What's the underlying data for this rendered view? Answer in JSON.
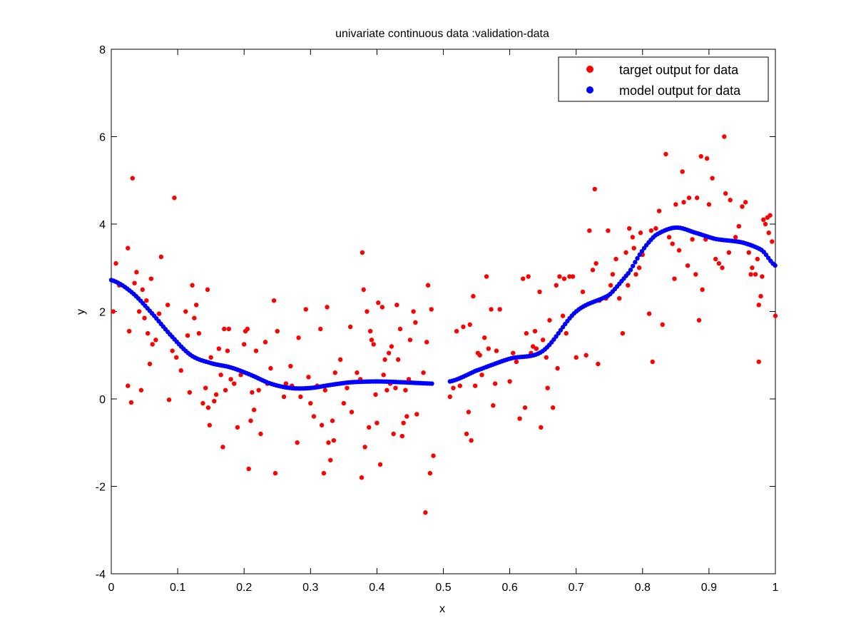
{
  "chart_data": {
    "type": "scatter",
    "title": "univariate continuous data :validation-data",
    "xlabel": "x",
    "ylabel": "y",
    "xlim": [
      0,
      1
    ],
    "ylim": [
      -4,
      8
    ],
    "xticks": [
      0,
      0.1,
      0.2,
      0.3,
      0.4,
      0.5,
      0.6,
      0.7,
      0.8,
      0.9,
      1
    ],
    "xtick_labels": [
      "0",
      "0.1",
      "0.2",
      "0.3",
      "0.4",
      "0.5",
      "0.6",
      "0.7",
      "0.8",
      "0.9",
      "1"
    ],
    "yticks": [
      -4,
      -2,
      0,
      2,
      4,
      6,
      8
    ],
    "ytick_labels": [
      "-4",
      "-2",
      "0",
      "2",
      "4",
      "6",
      "8"
    ],
    "grid": false,
    "legend_position": "top-right",
    "series": [
      {
        "name": "target output for data",
        "color": "#ff0000",
        "points": [
          [
            0.003,
            2.0
          ],
          [
            0.007,
            3.1
          ],
          [
            0.012,
            2.6
          ],
          [
            0.025,
            3.45
          ],
          [
            0.025,
            0.3
          ],
          [
            0.027,
            1.55
          ],
          [
            0.03,
            -0.08
          ],
          [
            0.032,
            5.05
          ],
          [
            0.035,
            2.65
          ],
          [
            0.038,
            2.9
          ],
          [
            0.042,
            2.0
          ],
          [
            0.045,
            0.2
          ],
          [
            0.047,
            2.5
          ],
          [
            0.05,
            1.85
          ],
          [
            0.053,
            2.25
          ],
          [
            0.055,
            1.5
          ],
          [
            0.058,
            0.8
          ],
          [
            0.06,
            2.75
          ],
          [
            0.062,
            1.25
          ],
          [
            0.067,
            1.35
          ],
          [
            0.072,
            1.95
          ],
          [
            0.075,
            3.25
          ],
          [
            0.085,
            2.15
          ],
          [
            0.087,
            -0.02
          ],
          [
            0.092,
            1.1
          ],
          [
            0.095,
            4.6
          ],
          [
            0.098,
            0.95
          ],
          [
            0.105,
            0.65
          ],
          [
            0.112,
            2.0
          ],
          [
            0.115,
            1.45
          ],
          [
            0.118,
            0.15
          ],
          [
            0.122,
            2.6
          ],
          [
            0.125,
            1.85
          ],
          [
            0.128,
            2.15
          ],
          [
            0.132,
            1.5
          ],
          [
            0.138,
            -0.1
          ],
          [
            0.142,
            0.25
          ],
          [
            0.145,
            2.5
          ],
          [
            0.146,
            -0.2
          ],
          [
            0.148,
            -0.6
          ],
          [
            0.15,
            0.95
          ],
          [
            0.155,
            -0.05
          ],
          [
            0.158,
            0.1
          ],
          [
            0.162,
            1.15
          ],
          [
            0.165,
            0.55
          ],
          [
            0.168,
            -1.1
          ],
          [
            0.17,
            1.6
          ],
          [
            0.172,
            0.2
          ],
          [
            0.175,
            1.1
          ],
          [
            0.177,
            1.6
          ],
          [
            0.18,
            0.45
          ],
          [
            0.185,
            0.35
          ],
          [
            0.19,
            -0.65
          ],
          [
            0.195,
            0.55
          ],
          [
            0.2,
            1.25
          ],
          [
            0.202,
            1.55
          ],
          [
            0.205,
            1.6
          ],
          [
            0.207,
            -1.6
          ],
          [
            0.21,
            -0.5
          ],
          [
            0.212,
            0.15
          ],
          [
            0.215,
            -0.25
          ],
          [
            0.218,
            1.1
          ],
          [
            0.222,
            0.2
          ],
          [
            0.225,
            -0.8
          ],
          [
            0.232,
            1.3
          ],
          [
            0.235,
            0.35
          ],
          [
            0.24,
            0.7
          ],
          [
            0.245,
            2.25
          ],
          [
            0.247,
            -1.7
          ],
          [
            0.25,
            1.55
          ],
          [
            0.26,
            0.05
          ],
          [
            0.263,
            0.35
          ],
          [
            0.27,
            0.75
          ],
          [
            0.272,
            0.3
          ],
          [
            0.28,
            -1.0
          ],
          [
            0.282,
            1.4
          ],
          [
            0.285,
            0.05
          ],
          [
            0.293,
            2.05
          ],
          [
            0.297,
            0.5
          ],
          [
            0.3,
            -0.1
          ],
          [
            0.305,
            -0.4
          ],
          [
            0.31,
            0.3
          ],
          [
            0.315,
            1.6
          ],
          [
            0.317,
            -0.6
          ],
          [
            0.32,
            -1.7
          ],
          [
            0.322,
            0.2
          ],
          [
            0.325,
            2.1
          ],
          [
            0.327,
            -1.0
          ],
          [
            0.33,
            -1.4
          ],
          [
            0.333,
            -0.5
          ],
          [
            0.335,
            -0.95
          ],
          [
            0.337,
            0.6
          ],
          [
            0.345,
            0.9
          ],
          [
            0.35,
            -0.1
          ],
          [
            0.355,
            0.25
          ],
          [
            0.36,
            1.65
          ],
          [
            0.362,
            -0.3
          ],
          [
            0.37,
            0.6
          ],
          [
            0.375,
            0.45
          ],
          [
            0.377,
            -1.8
          ],
          [
            0.378,
            3.35
          ],
          [
            0.38,
            2.5
          ],
          [
            0.382,
            -1.1
          ],
          [
            0.385,
            2.0
          ],
          [
            0.388,
            -0.65
          ],
          [
            0.39,
            1.55
          ],
          [
            0.392,
            1.35
          ],
          [
            0.395,
            1.25
          ],
          [
            0.398,
            0.1
          ],
          [
            0.4,
            -0.55
          ],
          [
            0.402,
            2.2
          ],
          [
            0.405,
            -1.5
          ],
          [
            0.408,
            2.1
          ],
          [
            0.41,
            0.55
          ],
          [
            0.412,
            0.9
          ],
          [
            0.415,
            0.2
          ],
          [
            0.418,
            1.05
          ],
          [
            0.42,
            0.35
          ],
          [
            0.422,
            1.2
          ],
          [
            0.425,
            -0.8
          ],
          [
            0.428,
            0.25
          ],
          [
            0.43,
            2.15
          ],
          [
            0.432,
            0.9
          ],
          [
            0.435,
            1.6
          ],
          [
            0.438,
            -0.85
          ],
          [
            0.44,
            -0.55
          ],
          [
            0.443,
            0.2
          ],
          [
            0.445,
            -0.4
          ],
          [
            0.448,
            0.45
          ],
          [
            0.45,
            1.35
          ],
          [
            0.455,
            2.0
          ],
          [
            0.458,
            1.75
          ],
          [
            0.46,
            -0.35
          ],
          [
            0.47,
            0.6
          ],
          [
            0.473,
            -2.6
          ],
          [
            0.475,
            1.3
          ],
          [
            0.477,
            2.6
          ],
          [
            0.48,
            -1.7
          ],
          [
            0.482,
            2.05
          ],
          [
            0.485,
            -1.3
          ],
          [
            0.51,
            0.05
          ],
          [
            0.515,
            0.25
          ],
          [
            0.52,
            1.55
          ],
          [
            0.525,
            0.3
          ],
          [
            0.53,
            1.65
          ],
          [
            0.535,
            -0.8
          ],
          [
            0.538,
            -0.3
          ],
          [
            0.54,
            1.7
          ],
          [
            0.542,
            -0.95
          ],
          [
            0.545,
            2.35
          ],
          [
            0.548,
            0.3
          ],
          [
            0.552,
            1.05
          ],
          [
            0.555,
            1.0
          ],
          [
            0.558,
            0.55
          ],
          [
            0.562,
            1.4
          ],
          [
            0.565,
            2.8
          ],
          [
            0.568,
            1.15
          ],
          [
            0.572,
            2.05
          ],
          [
            0.575,
            -0.15
          ],
          [
            0.578,
            0.35
          ],
          [
            0.58,
            1.1
          ],
          [
            0.585,
            2.05
          ],
          [
            0.6,
            0.4
          ],
          [
            0.605,
            1.05
          ],
          [
            0.61,
            0.85
          ],
          [
            0.615,
            -0.45
          ],
          [
            0.62,
            2.75
          ],
          [
            0.623,
            -0.2
          ],
          [
            0.625,
            1.5
          ],
          [
            0.628,
            2.8
          ],
          [
            0.632,
            1.05
          ],
          [
            0.635,
            1.2
          ],
          [
            0.638,
            1.55
          ],
          [
            0.64,
            1.15
          ],
          [
            0.645,
            2.45
          ],
          [
            0.647,
            -0.65
          ],
          [
            0.65,
            1.35
          ],
          [
            0.655,
            0.95
          ],
          [
            0.657,
            0.25
          ],
          [
            0.66,
            1.8
          ],
          [
            0.665,
            -0.2
          ],
          [
            0.67,
            2.6
          ],
          [
            0.672,
            0.7
          ],
          [
            0.675,
            2.8
          ],
          [
            0.68,
            1.9
          ],
          [
            0.682,
            2.75
          ],
          [
            0.685,
            1.5
          ],
          [
            0.69,
            2.8
          ],
          [
            0.695,
            2.8
          ],
          [
            0.7,
            0.95
          ],
          [
            0.71,
            2.45
          ],
          [
            0.715,
            1.0
          ],
          [
            0.72,
            3.85
          ],
          [
            0.725,
            2.95
          ],
          [
            0.728,
            4.8
          ],
          [
            0.73,
            3.1
          ],
          [
            0.733,
            0.8
          ],
          [
            0.735,
            2.25
          ],
          [
            0.745,
            2.3
          ],
          [
            0.748,
            3.85
          ],
          [
            0.752,
            2.6
          ],
          [
            0.755,
            2.85
          ],
          [
            0.76,
            3.2
          ],
          [
            0.765,
            2.3
          ],
          [
            0.77,
            1.5
          ],
          [
            0.775,
            3.35
          ],
          [
            0.778,
            2.6
          ],
          [
            0.78,
            3.9
          ],
          [
            0.785,
            3.7
          ],
          [
            0.787,
            3.45
          ],
          [
            0.79,
            2.85
          ],
          [
            0.795,
            3.0
          ],
          [
            0.797,
            3.8
          ],
          [
            0.8,
            3.3
          ],
          [
            0.81,
            1.95
          ],
          [
            0.813,
            3.85
          ],
          [
            0.815,
            0.85
          ],
          [
            0.82,
            3.9
          ],
          [
            0.825,
            4.3
          ],
          [
            0.83,
            1.7
          ],
          [
            0.835,
            5.6
          ],
          [
            0.84,
            3.7
          ],
          [
            0.845,
            3.55
          ],
          [
            0.848,
            2.75
          ],
          [
            0.85,
            4.45
          ],
          [
            0.855,
            3.4
          ],
          [
            0.86,
            5.2
          ],
          [
            0.862,
            4.5
          ],
          [
            0.868,
            3.05
          ],
          [
            0.87,
            4.6
          ],
          [
            0.875,
            3.65
          ],
          [
            0.88,
            2.85
          ],
          [
            0.882,
            4.6
          ],
          [
            0.885,
            1.8
          ],
          [
            0.888,
            5.55
          ],
          [
            0.89,
            2.5
          ],
          [
            0.895,
            3.65
          ],
          [
            0.897,
            5.5
          ],
          [
            0.9,
            4.45
          ],
          [
            0.905,
            5.05
          ],
          [
            0.91,
            3.2
          ],
          [
            0.915,
            3.1
          ],
          [
            0.92,
            3.0
          ],
          [
            0.923,
            6.0
          ],
          [
            0.925,
            4.7
          ],
          [
            0.93,
            3.35
          ],
          [
            0.932,
            4.55
          ],
          [
            0.94,
            3.7
          ],
          [
            0.945,
            3.95
          ],
          [
            0.95,
            4.4
          ],
          [
            0.955,
            4.5
          ],
          [
            0.96,
            3.35
          ],
          [
            0.963,
            2.85
          ],
          [
            0.965,
            3.0
          ],
          [
            0.97,
            2.85
          ],
          [
            0.973,
            3.2
          ],
          [
            0.975,
            2.15
          ],
          [
            0.978,
            2.35
          ],
          [
            0.98,
            2.8
          ],
          [
            0.982,
            4.1
          ],
          [
            0.985,
            4.0
          ],
          [
            0.988,
            4.15
          ],
          [
            0.99,
            3.8
          ],
          [
            0.992,
            4.2
          ],
          [
            0.995,
            3.6
          ],
          [
            0.975,
            0.85
          ],
          [
            1.0,
            1.9
          ]
        ]
      },
      {
        "name": "model output for data",
        "color": "#0000ff",
        "points": [
          [
            0.0,
            2.72
          ],
          [
            0.03,
            2.45
          ],
          [
            0.06,
            1.98
          ],
          [
            0.09,
            1.45
          ],
          [
            0.12,
            1.0
          ],
          [
            0.15,
            0.82
          ],
          [
            0.18,
            0.72
          ],
          [
            0.21,
            0.55
          ],
          [
            0.24,
            0.35
          ],
          [
            0.27,
            0.25
          ],
          [
            0.3,
            0.25
          ],
          [
            0.33,
            0.32
          ],
          [
            0.36,
            0.38
          ],
          [
            0.4,
            0.4
          ],
          [
            0.44,
            0.38
          ],
          [
            0.485,
            0.35
          ],
          [
            0.51,
            0.4
          ],
          [
            0.55,
            0.65
          ],
          [
            0.6,
            0.92
          ],
          [
            0.65,
            1.1
          ],
          [
            0.7,
            2.0
          ],
          [
            0.75,
            2.38
          ],
          [
            0.78,
            2.9
          ],
          [
            0.8,
            3.4
          ],
          [
            0.82,
            3.75
          ],
          [
            0.85,
            3.92
          ],
          [
            0.88,
            3.8
          ],
          [
            0.91,
            3.66
          ],
          [
            0.95,
            3.58
          ],
          [
            0.98,
            3.4
          ],
          [
            1.0,
            3.05
          ]
        ]
      }
    ]
  }
}
